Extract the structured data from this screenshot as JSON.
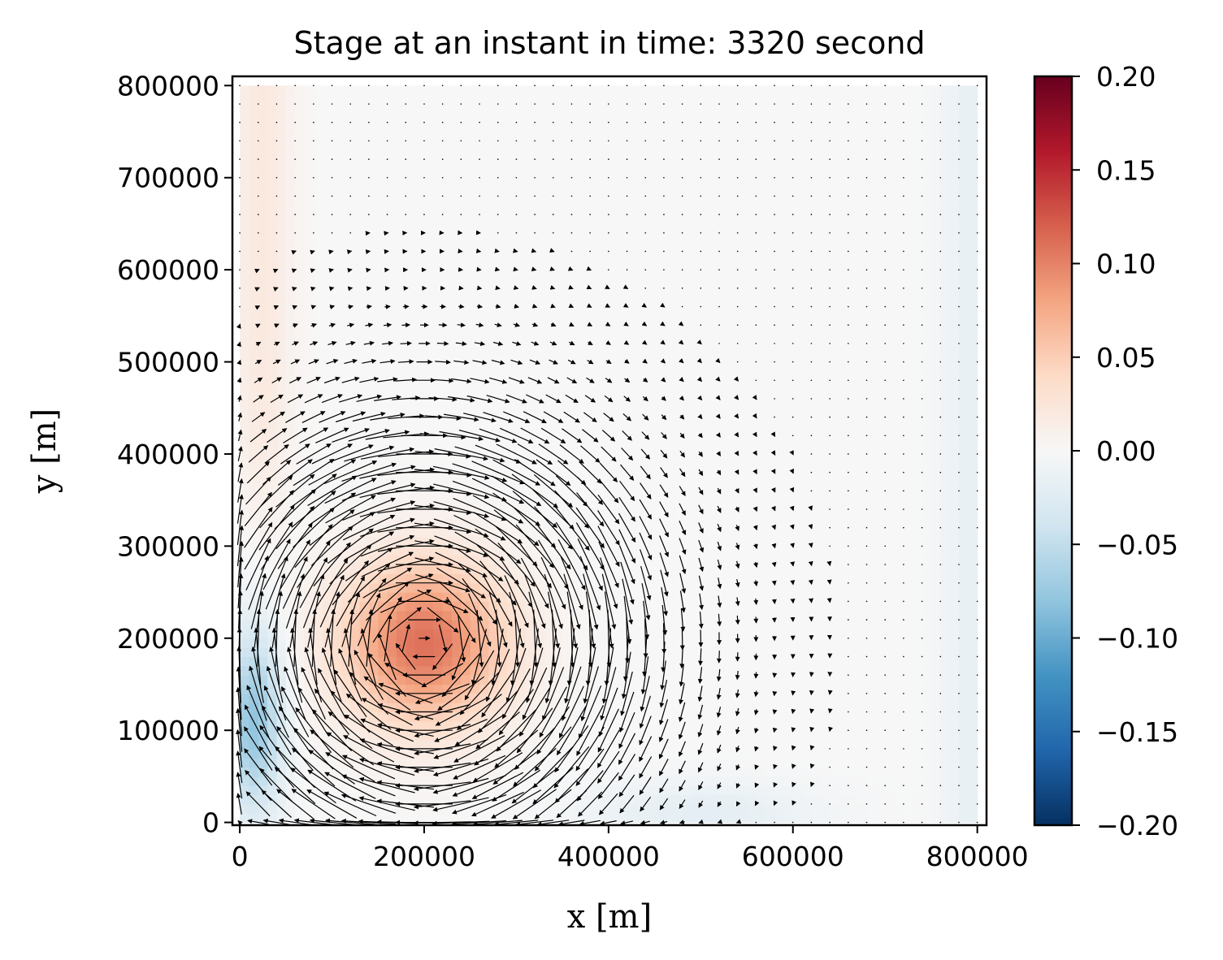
{
  "chart_data": {
    "type": "heatmap",
    "title": "Stage at an instant in time: 3320 second",
    "xlabel": "x [m]",
    "ylabel": "y [m]",
    "xlim": [
      -8000,
      810000
    ],
    "ylim": [
      -3000,
      810000
    ],
    "x_ticks": [
      0,
      200000,
      400000,
      600000,
      800000
    ],
    "x_tick_labels": [
      "0",
      "200000",
      "400000",
      "600000",
      "800000"
    ],
    "y_ticks": [
      0,
      100000,
      200000,
      300000,
      400000,
      500000,
      600000,
      700000,
      800000
    ],
    "y_tick_labels": [
      "0",
      "100000",
      "200000",
      "300000",
      "400000",
      "500000",
      "600000",
      "700000",
      "800000"
    ],
    "grid": false,
    "colormap": "RdBu_r",
    "colorbar": {
      "vmin": -0.2,
      "vmax": 0.2,
      "ticks": [
        0.2,
        0.15,
        0.1,
        0.05,
        0.0,
        -0.05,
        -0.1,
        -0.15,
        -0.2
      ],
      "tick_labels": [
        "0.20",
        "0.15",
        "0.10",
        "0.05",
        "0.00",
        "−0.05",
        "−0.10",
        "−0.15",
        "−0.20"
      ],
      "colors": [
        "#053061",
        "#2166ac",
        "#4393c3",
        "#92c5de",
        "#d1e5f0",
        "#f7f7f7",
        "#fddbc7",
        "#f4a582",
        "#d6604d",
        "#b2182b",
        "#67001f"
      ]
    },
    "field": {
      "name": "stage",
      "domain_x": [
        0,
        800000
      ],
      "domain_y": [
        0,
        800000
      ],
      "grid_cells": 80,
      "features": [
        {
          "kind": "eddy",
          "x": 200000,
          "y": 195000,
          "peak_stage": 0.11,
          "rotation": "clockwise"
        },
        {
          "kind": "depression",
          "x": 15000,
          "y": 110000,
          "min_stage": -0.08
        },
        {
          "kind": "positive-band",
          "edge": "west",
          "y_range": [
            350000,
            800000
          ],
          "stage": 0.02
        },
        {
          "kind": "negative-band",
          "edge": "south",
          "x_range": [
            380000,
            620000
          ],
          "stage": -0.02
        },
        {
          "kind": "negative-band",
          "edge": "east",
          "y_range": [
            100000,
            800000
          ],
          "stage": -0.015
        }
      ]
    },
    "quiver": {
      "grid_x_start": 0,
      "grid_x_step": 20000,
      "grid_y_start": 0,
      "grid_y_step": 20000,
      "count_x": 41,
      "count_y": 41,
      "color": "#000000"
    }
  }
}
